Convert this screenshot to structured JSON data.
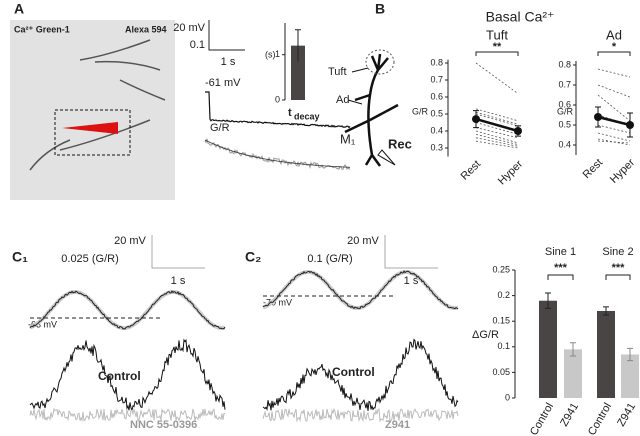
{
  "labels": {
    "panel_a": "A",
    "ca_dye": "Ca²⁺ Green-1",
    "alexa": "Alexa 594",
    "a_scale_mv": "20 mV",
    "a_scale_gr": "0.1",
    "a_scale_s": "1 s",
    "a_vm": "-61 mV",
    "a_gr": "G/R",
    "panel_b": "B",
    "b_title": "Basal Ca²⁺",
    "b_tuft": "Tuft",
    "b_ad": "Ad",
    "b_m1": "M₁",
    "b_rec": "Rec",
    "panel_c1": "C₁",
    "c1_scale_mv": "20 mV",
    "c1_scale_gr": "0.025 (G/R)",
    "c1_scale_s": "1 s",
    "c1_vm": "-63 mV",
    "c1_control": "Control",
    "c1_drug": "NNC 55-0396",
    "panel_c2": "C₂",
    "c2_scale_mv": "20 mV",
    "c2_scale_gr": "0.1 (G/R)",
    "c2_scale_s": "1 s",
    "c2_vm": "-70 mV",
    "c2_control": "Control",
    "c2_drug": "Z941"
  },
  "chart_data": [
    {
      "type": "bar",
      "ylabel": "(s)",
      "categories": [
        "t"
      ],
      "category_subscripts": [
        "decay"
      ],
      "values": [
        1.2
      ],
      "errors": [
        0.35
      ],
      "color": "#4a4545",
      "ylim": [
        0,
        1.7
      ],
      "yticks": [
        0,
        1
      ]
    },
    {
      "type": "line",
      "title": "Tuft",
      "ylabel": "G/R",
      "significance": "**",
      "categories": [
        "Rest",
        "Hyper"
      ],
      "ylim": [
        0.25,
        0.82
      ],
      "yticks": [
        0.3,
        0.4,
        0.5,
        0.6,
        0.7,
        0.8
      ],
      "series": [
        {
          "style": "cell",
          "values": [
            0.8,
            0.62
          ]
        },
        {
          "style": "cell",
          "values": [
            0.53,
            0.46
          ]
        },
        {
          "style": "cell",
          "values": [
            0.51,
            0.44
          ]
        },
        {
          "style": "cell",
          "values": [
            0.5,
            0.43
          ]
        },
        {
          "style": "cell",
          "values": [
            0.45,
            0.38
          ]
        },
        {
          "style": "cell",
          "values": [
            0.42,
            0.36
          ]
        },
        {
          "style": "cell",
          "values": [
            0.4,
            0.33
          ]
        },
        {
          "style": "cell",
          "values": [
            0.38,
            0.32
          ]
        },
        {
          "style": "cell",
          "values": [
            0.36,
            0.31
          ]
        },
        {
          "style": "cell",
          "values": [
            0.34,
            0.3
          ]
        },
        {
          "style": "mean",
          "values": [
            0.47,
            0.4
          ],
          "errors": [
            0.05,
            0.03
          ]
        }
      ]
    },
    {
      "type": "line",
      "title": "Ad",
      "ylabel": "G/R",
      "significance": "*",
      "categories": [
        "Rest",
        "Hyper"
      ],
      "ylim": [
        0.35,
        0.82
      ],
      "yticks": [
        0.4,
        0.5,
        0.6,
        0.7,
        0.8
      ],
      "series": [
        {
          "style": "cell",
          "values": [
            0.78,
            0.74
          ]
        },
        {
          "style": "cell",
          "values": [
            0.7,
            0.64
          ]
        },
        {
          "style": "cell",
          "values": [
            0.65,
            0.52
          ]
        },
        {
          "style": "cell",
          "values": [
            0.55,
            0.5
          ]
        },
        {
          "style": "cell",
          "values": [
            0.5,
            0.46
          ]
        },
        {
          "style": "cell",
          "values": [
            0.46,
            0.42
          ]
        },
        {
          "style": "cell",
          "values": [
            0.43,
            0.4
          ]
        },
        {
          "style": "cell",
          "values": [
            0.42,
            0.41
          ]
        },
        {
          "style": "mean",
          "values": [
            0.54,
            0.5
          ],
          "errors": [
            0.05,
            0.06
          ]
        }
      ]
    },
    {
      "type": "grouped_bar",
      "ylabel": "ΔG/R",
      "ylim": [
        0,
        0.25
      ],
      "yticks": [
        0,
        0.05,
        0.1,
        0.15,
        0.2,
        0.25
      ],
      "groups": [
        {
          "name": "Sine 1",
          "significance": "***",
          "categories": [
            "Control",
            "Z941"
          ],
          "values": [
            0.19,
            0.095
          ],
          "errors": [
            0.015,
            0.013
          ],
          "colors": [
            "#4a4545",
            "#c8c8c8"
          ]
        },
        {
          "name": "Sine 2",
          "significance": "***",
          "categories": [
            "Control",
            "Z941"
          ],
          "values": [
            0.17,
            0.085
          ],
          "errors": [
            0.008,
            0.012
          ],
          "colors": [
            "#4a4545",
            "#c8c8c8"
          ]
        }
      ]
    }
  ]
}
